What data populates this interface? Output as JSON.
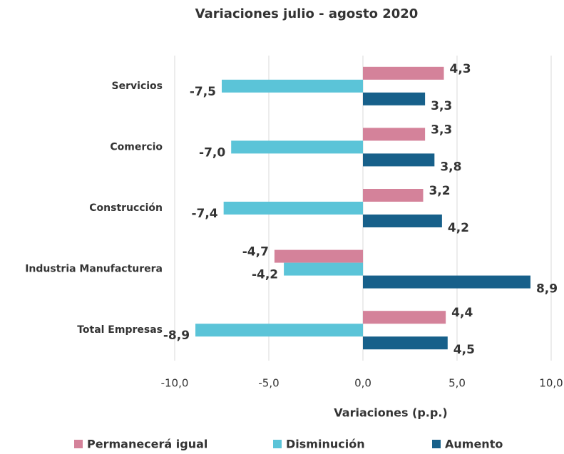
{
  "chart_data": {
    "type": "hbar",
    "title": "Variaciones julio - agosto 2020",
    "x_label": "Variaciones (p.p.)",
    "categories": [
      "Servicios",
      "Comercio",
      "Construcción",
      "Industria Manufacturera",
      "Total Empresas"
    ],
    "series": [
      {
        "name": "Permanecerá igual",
        "color": "#d4829a",
        "values": [
          4.3,
          3.3,
          3.2,
          -4.7,
          4.4
        ],
        "value_labels": [
          "4,3",
          "3,3",
          "3,2",
          "-4,7",
          "4,4"
        ]
      },
      {
        "name": "Disminución",
        "color": "#5bc4d8",
        "values": [
          -7.5,
          -7.0,
          -7.4,
          -4.2,
          -8.9
        ],
        "value_labels": [
          "-7,5",
          "-7,0",
          "-7,4",
          "-4,2",
          "-8,9"
        ]
      },
      {
        "name": "Aumento",
        "color": "#17608a",
        "values": [
          3.3,
          3.8,
          4.2,
          8.9,
          4.5
        ],
        "value_labels": [
          "3,3",
          "3,8",
          "4,2",
          "8,9",
          "4,5"
        ]
      }
    ],
    "xlim": [
      -10,
      10
    ],
    "xticks": [
      {
        "value": -10,
        "label": "-10,0"
      },
      {
        "value": -5,
        "label": "-5,0"
      },
      {
        "value": 0,
        "label": "0,0"
      },
      {
        "value": 5,
        "label": "5,0"
      },
      {
        "value": 10,
        "label": "10,0"
      }
    ],
    "grid": true,
    "legend": "bottom"
  }
}
